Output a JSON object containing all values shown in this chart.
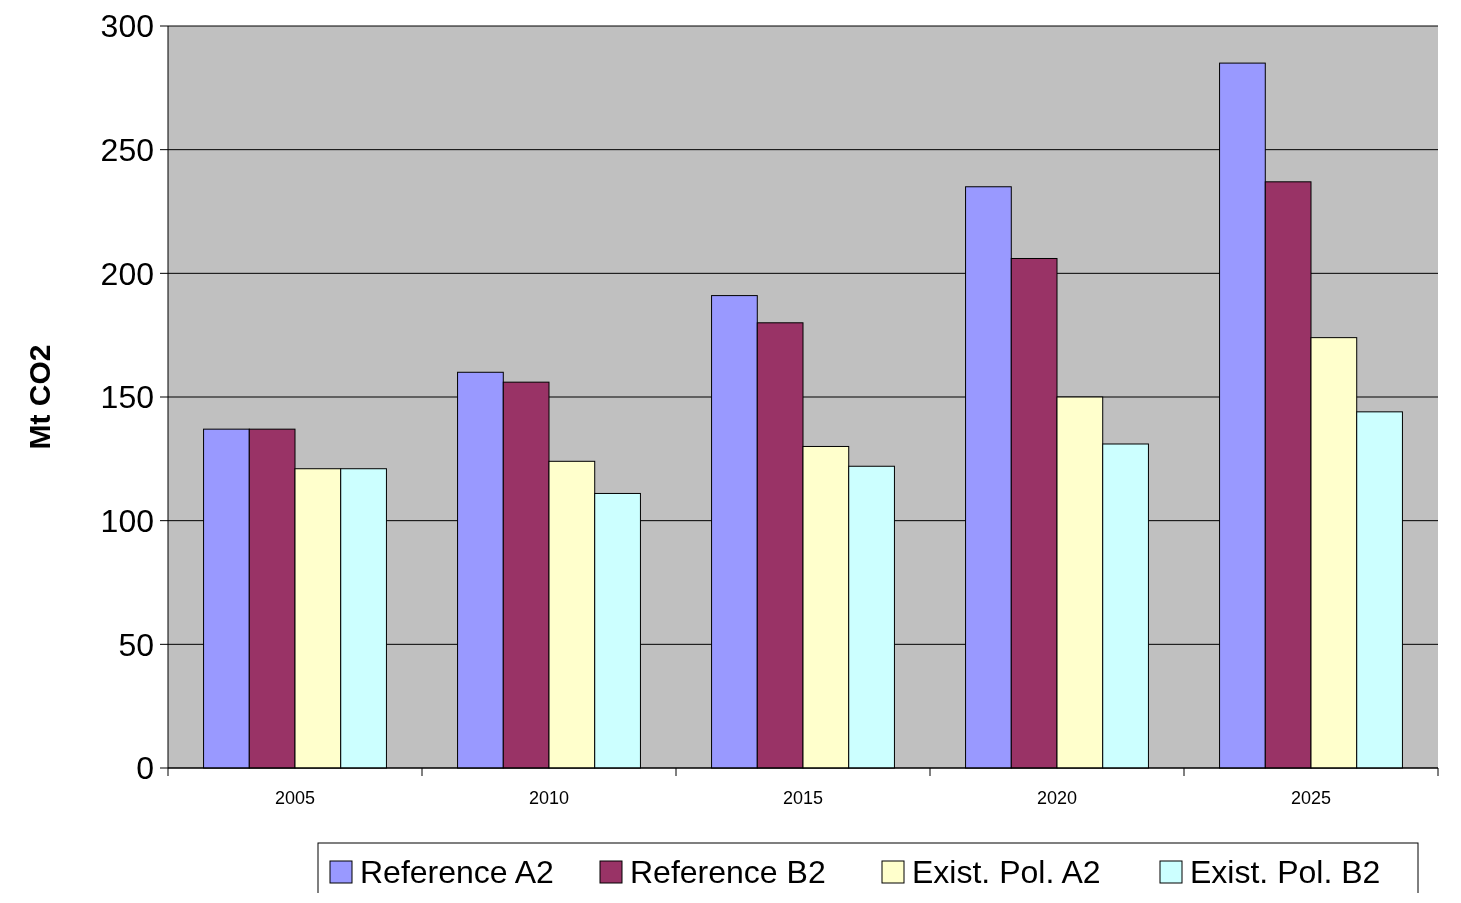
{
  "chart_data": {
    "type": "bar",
    "ylabel": "Mt CO2",
    "categories": [
      "2005",
      "2010",
      "2015",
      "2020",
      "2025"
    ],
    "series": [
      {
        "name": "Reference A2",
        "color": "#9999ff",
        "values": [
          137,
          160,
          191,
          235,
          285
        ]
      },
      {
        "name": "Reference B2",
        "color": "#993366",
        "values": [
          137,
          156,
          180,
          206,
          237
        ]
      },
      {
        "name": "Exist. Pol. A2",
        "color": "#ffffcc",
        "values": [
          121,
          124,
          130,
          150,
          174
        ]
      },
      {
        "name": "Exist. Pol. B2",
        "color": "#ccffff",
        "values": [
          121,
          111,
          122,
          131,
          144
        ]
      }
    ],
    "ylim": [
      0,
      300
    ],
    "yticks": [
      0,
      50,
      100,
      150,
      200,
      250,
      300
    ],
    "grid": "y",
    "legend": "bottom"
  }
}
